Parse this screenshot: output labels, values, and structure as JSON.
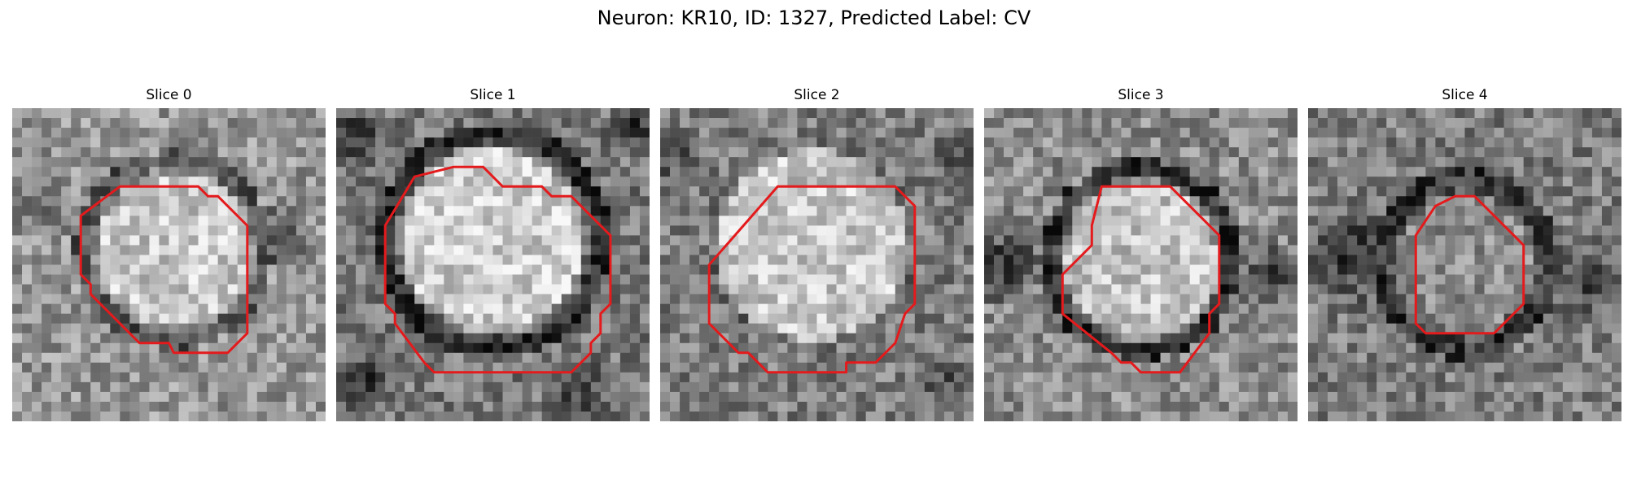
{
  "figure": {
    "title": "Neuron: KR10, ID: 1327, Predicted Label: CV",
    "contour_color": "#e41a1c",
    "colormap": "grayscale"
  },
  "panels": [
    {
      "title": "Slice 0"
    },
    {
      "title": "Slice 1"
    },
    {
      "title": "Slice 2"
    },
    {
      "title": "Slice 3"
    },
    {
      "title": "Slice 4"
    }
  ]
}
